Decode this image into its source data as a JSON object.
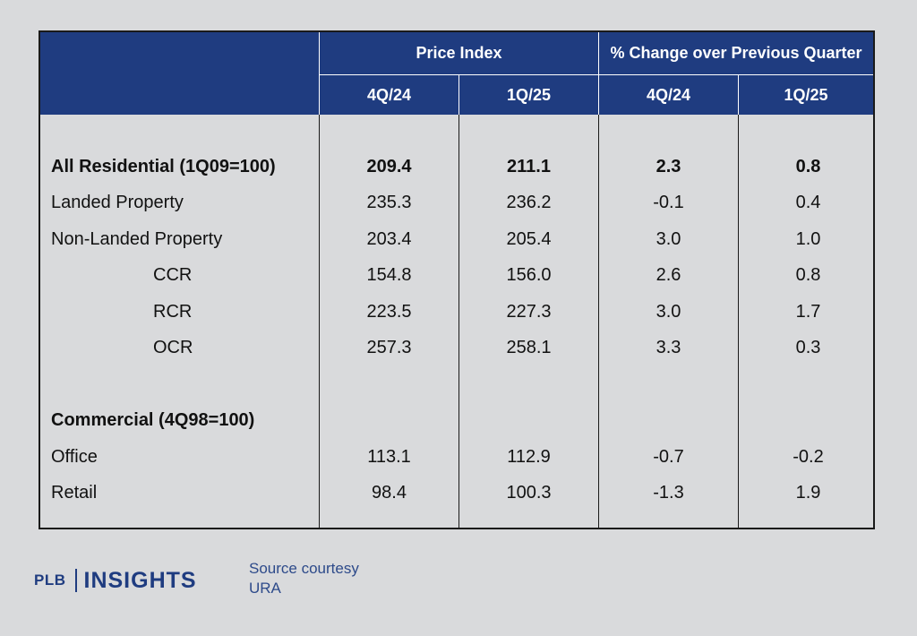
{
  "header": {
    "group1": "Price Index",
    "group2": "% Change over Previous Quarter",
    "cols": [
      "4Q/24",
      "1Q/25",
      "4Q/24",
      "1Q/25"
    ]
  },
  "rows": [
    {
      "label": "All Residential (1Q09=100)",
      "v1": "209.4",
      "v2": "211.1",
      "v3": "2.3",
      "v4": "0.8"
    },
    {
      "label": "Landed Property",
      "v1": "235.3",
      "v2": "236.2",
      "v3": "-0.1",
      "v4": "0.4"
    },
    {
      "label": "Non-Landed Property",
      "v1": "203.4",
      "v2": "205.4",
      "v3": "3.0",
      "v4": "1.0"
    },
    {
      "label": "CCR",
      "v1": "154.8",
      "v2": "156.0",
      "v3": "2.6",
      "v4": "0.8"
    },
    {
      "label": "RCR",
      "v1": "223.5",
      "v2": "227.3",
      "v3": "3.0",
      "v4": "1.7"
    },
    {
      "label": "OCR",
      "v1": "257.3",
      "v2": "258.1",
      "v3": "3.3",
      "v4": "0.3"
    },
    {
      "label": "Commercial (4Q98=100)"
    },
    {
      "label": "Office",
      "v1": "113.1",
      "v2": "112.9",
      "v3": "-0.7",
      "v4": "-0.2"
    },
    {
      "label": "Retail",
      "v1": "98.4",
      "v2": "100.3",
      "v3": "-1.3",
      "v4": "1.9"
    }
  ],
  "footer": {
    "logo_left": "PLB",
    "logo_right": "INSIGHTS",
    "source_line1": "Source courtesy",
    "source_line2": "URA"
  },
  "colors": {
    "header_bg": "#1f3c80",
    "page_bg": "#d9dadc",
    "brand": "#1f3c80"
  }
}
